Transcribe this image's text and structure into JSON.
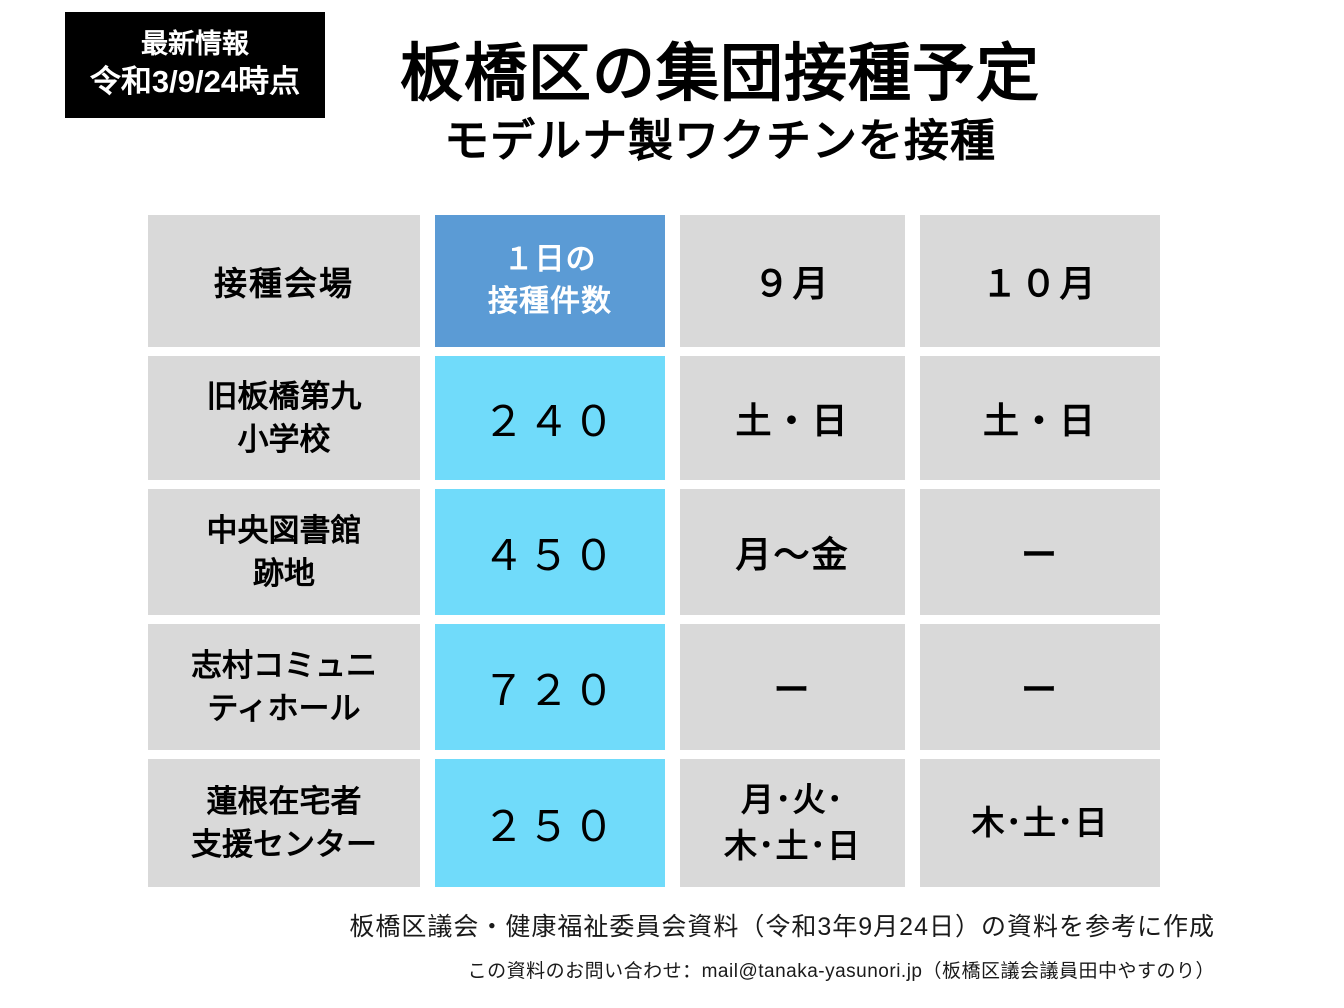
{
  "badge": {
    "line1": "最新情報",
    "line2": "令和3/9/24時点"
  },
  "header": {
    "title": "板橋区の集団接種予定",
    "subtitle": "モデルナ製ワクチンを接種"
  },
  "table": {
    "columns": {
      "venue": "接種会場",
      "daily": "１日の\n接種件数",
      "september": "９月",
      "october": "１０月"
    },
    "rows": [
      {
        "venue": "旧板橋第九\n小学校",
        "daily": "２４０",
        "september": "土・日",
        "october": "土・日"
      },
      {
        "venue": "中央図書館\n跡地",
        "daily": "４５０",
        "september": "月～金",
        "october": "ー"
      },
      {
        "venue": "志村コミュニ\nティホール",
        "daily": "７２０",
        "september": "ー",
        "october": "ー"
      },
      {
        "venue": "蓮根在宅者\n支援センター",
        "daily": "２５０",
        "september": "月･火･\n木･土･日",
        "october": "木･土･日"
      }
    ]
  },
  "footer": {
    "source": "板橋区議会・健康福祉委員会資料（令和3年9月24日）の資料を参考に作成",
    "contact": "この資料のお問い合わせ：mail@tanaka-yasunori.jp（板橋区議会議員田中やすのり）"
  },
  "colors": {
    "header_blue": "#5B9BD5",
    "highlight_cyan": "#70DBFA",
    "cell_gray": "#D9D9D9",
    "badge_black": "#000000",
    "background": "#FFFFFF"
  }
}
